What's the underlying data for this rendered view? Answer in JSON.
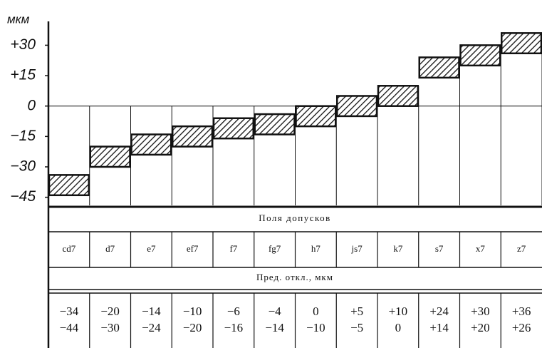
{
  "chart_data": {
    "type": "range-bar",
    "y_label": "мкм",
    "categories": [
      "cd7",
      "d7",
      "e7",
      "ef7",
      "f7",
      "fg7",
      "h7",
      "js7",
      "k7",
      "s7",
      "x7",
      "z7"
    ],
    "upper": {
      "values": [
        -34,
        -20,
        -14,
        -10,
        -6,
        -4,
        0,
        5,
        10,
        24,
        30,
        36
      ],
      "value_labels": [
        "−34",
        "−20",
        "−14",
        "−10",
        "−6",
        "−4",
        "0",
        "+5",
        "+10",
        "+24",
        "+30",
        "+36"
      ]
    },
    "lower": {
      "values": [
        -44,
        -30,
        -24,
        -20,
        -16,
        -14,
        -10,
        -5,
        0,
        14,
        20,
        26
      ],
      "value_labels": [
        "−44",
        "−30",
        "−24",
        "−20",
        "−16",
        "−14",
        "−10",
        "−5",
        "0",
        "+14",
        "+20",
        "+26"
      ]
    },
    "ylim": [
      -49,
      40
    ],
    "yticks": [
      {
        "value": 30,
        "label": "+30"
      },
      {
        "value": 15,
        "label": "+15"
      },
      0,
      {
        "value": -15,
        "label": "−15"
      },
      {
        "value": -30,
        "label": "−30"
      },
      {
        "value": -45,
        "label": "−45"
      }
    ],
    "table_header": "Поля допусков",
    "deviation_header": "Пред. откл., мкм"
  }
}
